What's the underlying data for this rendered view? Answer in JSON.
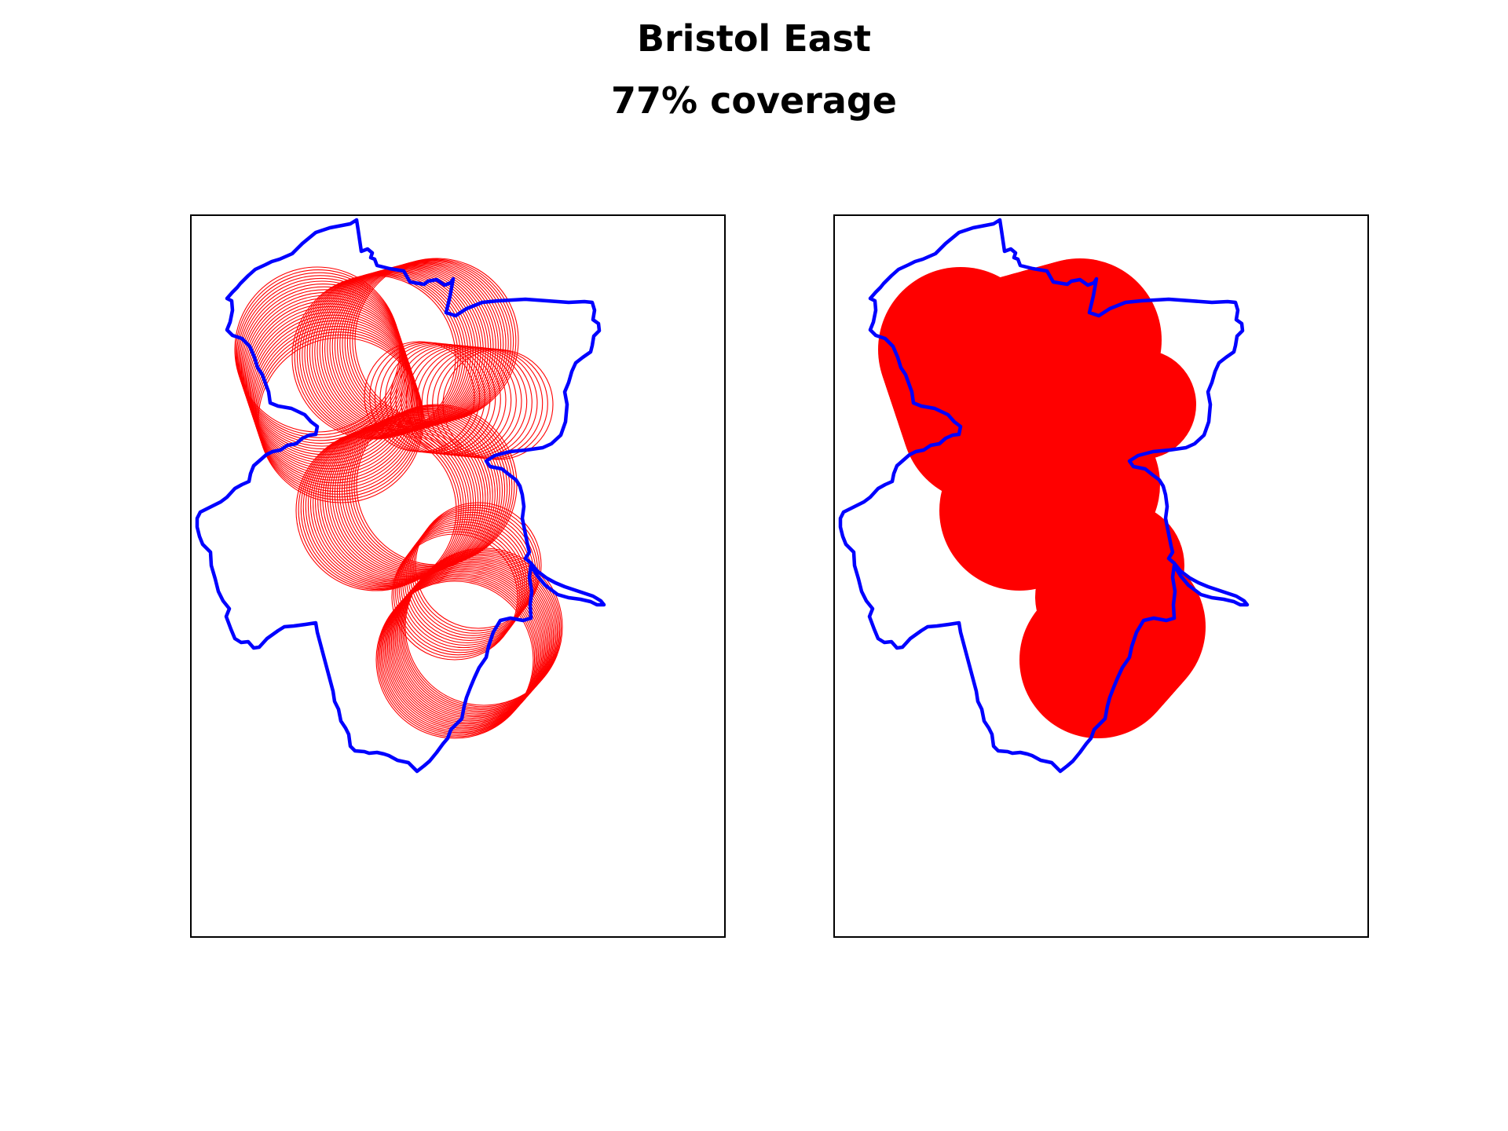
{
  "figure": {
    "title": "Bristol East",
    "subtitle": "77% coverage"
  },
  "colors": {
    "boundary": "#0000ff",
    "coverage": "#ff0000",
    "frame": "#000000",
    "background": "#ffffff"
  },
  "map_data": {
    "region": "Bristol East",
    "coverage_percent": 77,
    "panels": [
      {
        "id": "left",
        "style": "circle-outlines"
      },
      {
        "id": "right",
        "style": "filled-union"
      }
    ],
    "axes": {
      "ticks": false,
      "grid": false
    }
  }
}
